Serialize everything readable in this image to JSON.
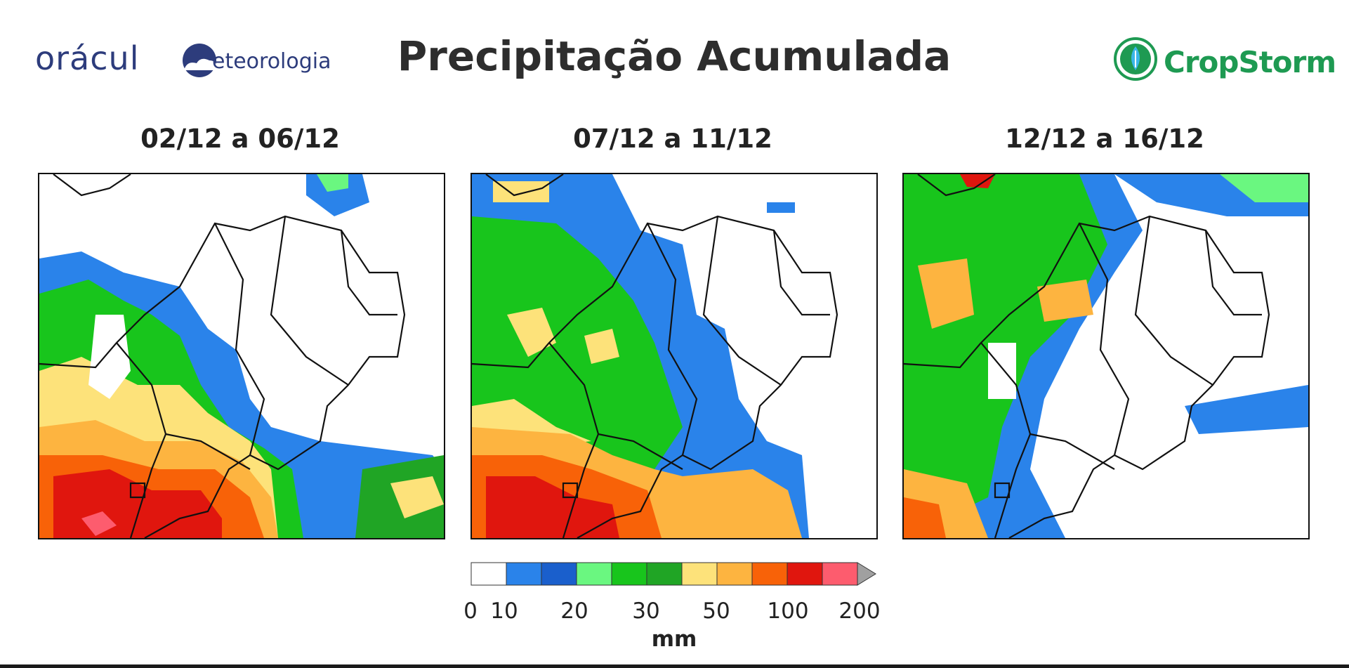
{
  "header": {
    "title": "Precipitação Acumulada",
    "left_logo": {
      "part1": "orácul",
      "part2": "eteorologia",
      "color": "#2d3c7c"
    },
    "right_logo": {
      "name": "CropStorm",
      "color": "#1e9a52"
    }
  },
  "panels": [
    {
      "label": "02/12 a 06/12",
      "rain_coverage": "west and south-central heavy, northeast dry"
    },
    {
      "label": "07/12 a 11/12",
      "rain_coverage": "west and central widespread, south heavy, east dry"
    },
    {
      "label": "12/12 a 16/12",
      "rain_coverage": "west and north widespread, east mostly dry"
    }
  ],
  "colorbar": {
    "unit": "mm",
    "bins": [
      {
        "from": "0",
        "to": "10",
        "color": "#ffffff"
      },
      {
        "from": "10",
        "to": "15",
        "color": "#2a83ea"
      },
      {
        "from": "15",
        "to": "20",
        "color": "#1a5fcc"
      },
      {
        "from": "20",
        "to": "25",
        "color": "#6af780"
      },
      {
        "from": "25",
        "to": "30",
        "color": "#18c51c"
      },
      {
        "from": "30",
        "to": "40",
        "color": "#20a525"
      },
      {
        "from": "40",
        "to": "50",
        "color": "#fde27a"
      },
      {
        "from": "50",
        "to": "75",
        "color": "#fdb440"
      },
      {
        "from": "75",
        "to": "100",
        "color": "#f86208"
      },
      {
        "from": "100",
        "to": "150",
        "color": "#e0160e"
      },
      {
        "from": "150",
        "to": "200",
        "color": "#fd5c6e"
      }
    ],
    "overflow_color": "#a0a0a0",
    "tick_labels": [
      "0",
      "10",
      "20",
      "30",
      "50",
      "100",
      "200"
    ]
  }
}
